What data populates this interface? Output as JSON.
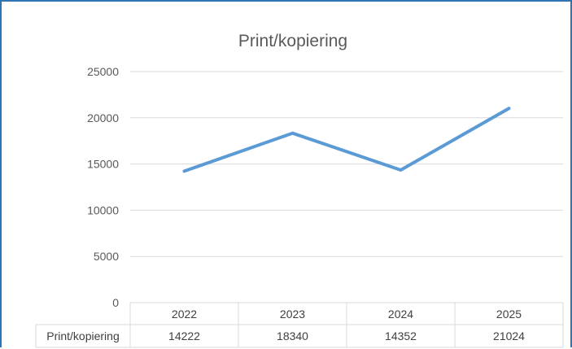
{
  "chart_data": {
    "type": "line",
    "title": "Print/kopiering",
    "categories": [
      "2022",
      "2023",
      "2024",
      "2025"
    ],
    "series": [
      {
        "name": "Print/kopiering",
        "values": [
          14222,
          18340,
          14352,
          21024
        ],
        "color": "#5b9bd5"
      }
    ],
    "ylim": [
      0,
      25000
    ],
    "yticks": [
      "0",
      "5000",
      "10000",
      "15000",
      "20000",
      "25000"
    ],
    "data_table": {
      "row_label": "Print/kopiering",
      "values": [
        "14222",
        "18340",
        "14352",
        "21024"
      ]
    },
    "grid": true,
    "legend": "none"
  },
  "colors": {
    "frame_border": "#2e75b6",
    "gridline": "#d9d9d9",
    "series": "#5b9bd5"
  }
}
